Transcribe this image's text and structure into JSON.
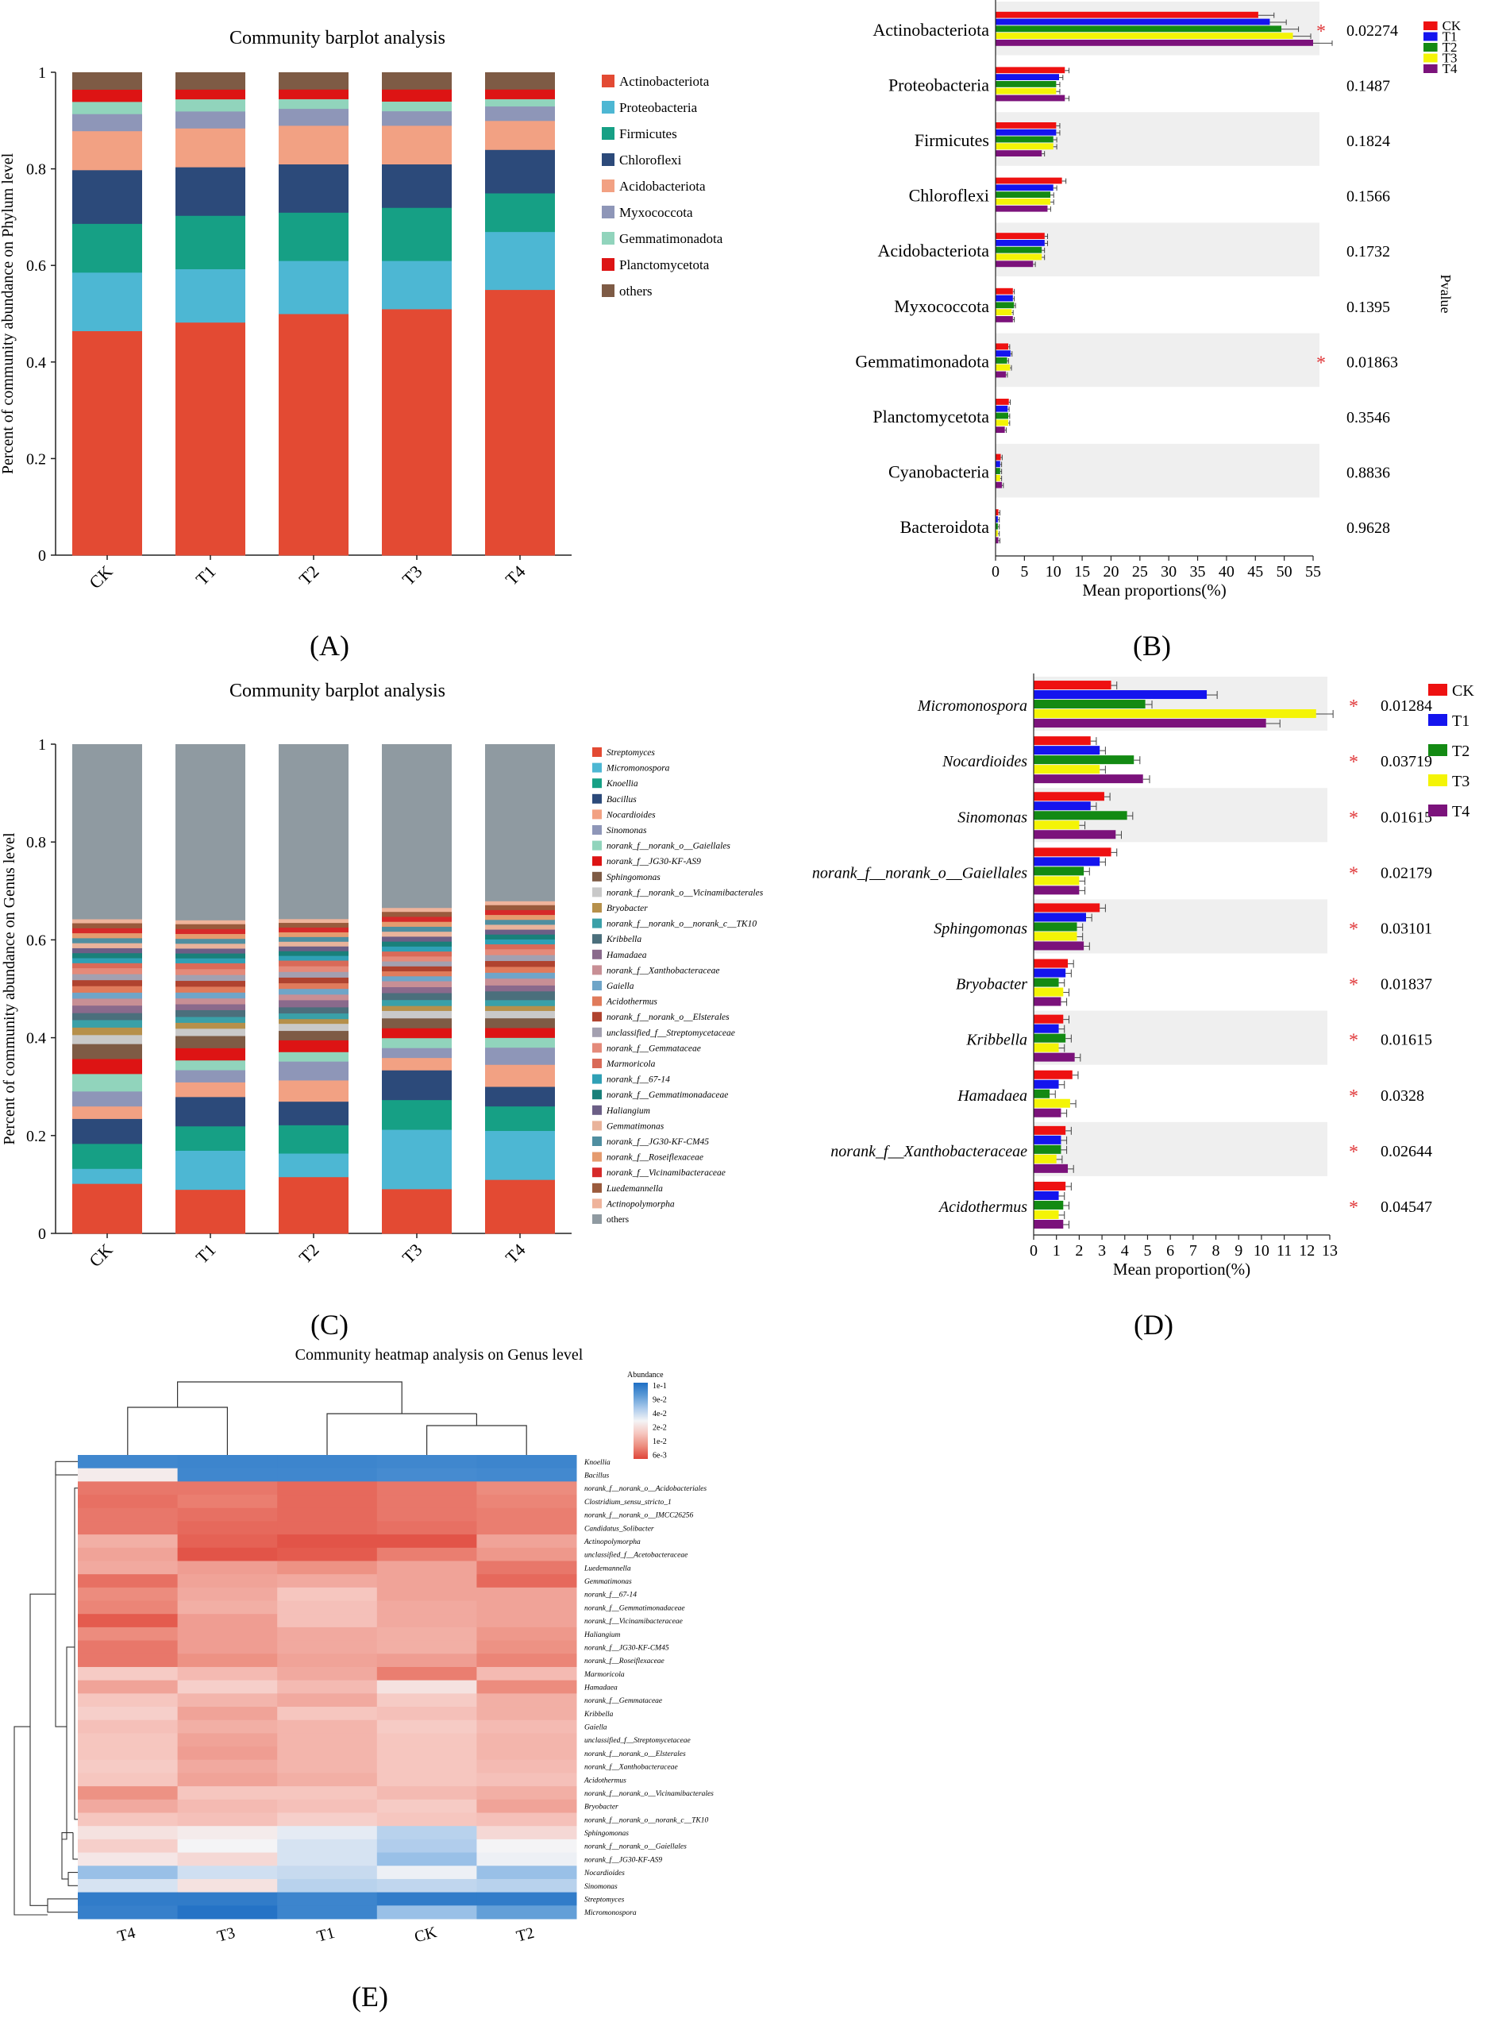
{
  "colors": {
    "phylum": [
      "#e34a33",
      "#4db7d3",
      "#16a085",
      "#2c4a7a",
      "#f2a183",
      "#8e96b8",
      "#91d4bc",
      "#dd1414",
      "#7e5b45"
    ],
    "groups": {
      "CK": "#ee1111",
      "T1": "#1414ee",
      "T2": "#138a13",
      "T3": "#f4f406",
      "T4": "#7b127b"
    },
    "heat_scale": [
      "#1f6fc4",
      "#5b9ad6",
      "#a9c9eb",
      "#f4f4f6",
      "#f6c6bf",
      "#ec8c7e",
      "#e0463a"
    ]
  },
  "chart_data": [
    {
      "id": "A",
      "type": "bar",
      "stacked": true,
      "title": "Community barplot analysis",
      "xlabel": "",
      "ylabel": "Percent of community abundance on Phylum level",
      "ylim": [
        0,
        1
      ],
      "yticks": [
        "0",
        "0.2",
        "0.4",
        "0.6",
        "0.8",
        "1"
      ],
      "categories": [
        "CK",
        "T1",
        "T2",
        "T3",
        "T4"
      ],
      "series": [
        {
          "name": "Actinobacteriota",
          "values": [
            0.46,
            0.48,
            0.5,
            0.51,
            0.55
          ]
        },
        {
          "name": "Proteobacteria",
          "values": [
            0.12,
            0.11,
            0.11,
            0.1,
            0.12
          ]
        },
        {
          "name": "Firmicutes",
          "values": [
            0.1,
            0.11,
            0.1,
            0.11,
            0.08
          ]
        },
        {
          "name": "Chloroflexi",
          "values": [
            0.11,
            0.1,
            0.1,
            0.09,
            0.09
          ]
        },
        {
          "name": "Acidobacteriota",
          "values": [
            0.08,
            0.08,
            0.08,
            0.08,
            0.06
          ]
        },
        {
          "name": "Myxococcota",
          "values": [
            0.035,
            0.035,
            0.035,
            0.03,
            0.03
          ]
        },
        {
          "name": "Gemmatimonadota",
          "values": [
            0.025,
            0.025,
            0.02,
            0.02,
            0.015
          ]
        },
        {
          "name": "Planctomycetota",
          "values": [
            0.025,
            0.02,
            0.02,
            0.025,
            0.02
          ]
        },
        {
          "name": "others",
          "values": [
            0.035,
            0.035,
            0.035,
            0.035,
            0.035
          ]
        }
      ],
      "panel_label": "(A)"
    },
    {
      "id": "B",
      "type": "bar",
      "orientation": "horizontal",
      "xlabel": "Mean proportions(%)",
      "ylabel": "Pvalue",
      "xlim": [
        0,
        55
      ],
      "xticks": [
        "0",
        "5",
        "10",
        "15",
        "20",
        "25",
        "30",
        "35",
        "40",
        "45",
        "50",
        "55"
      ],
      "categories": [
        "Actinobacteriota",
        "Proteobacteria",
        "Firmicutes",
        "Chloroflexi",
        "Acidobacteriota",
        "Myxococcota",
        "Gemmatimonadota",
        "Planctomycetota",
        "Cyanobacteria",
        "Bacteroidota"
      ],
      "groups": [
        "CK",
        "T1",
        "T2",
        "T3",
        "T4"
      ],
      "values": [
        [
          45.5,
          47.5,
          49.5,
          51.5,
          55
        ],
        [
          12,
          11,
          10.5,
          10.5,
          12
        ],
        [
          10.5,
          10.5,
          10,
          10,
          8
        ],
        [
          11.5,
          10,
          9.5,
          9.5,
          9
        ],
        [
          8.5,
          8.5,
          8,
          8,
          6.5
        ],
        [
          3,
          3,
          3.2,
          2.8,
          3
        ],
        [
          2.2,
          2.6,
          2,
          2.5,
          1.8
        ],
        [
          2.3,
          2.1,
          2.2,
          2.2,
          1.6
        ],
        [
          0.9,
          0.8,
          0.8,
          0.8,
          1.1
        ],
        [
          0.5,
          0.4,
          0.4,
          0.4,
          0.5
        ]
      ],
      "pvalues": [
        "0.02274",
        "0.1487",
        "0.1824",
        "0.1566",
        "0.1732",
        "0.1395",
        "0.01863",
        "0.3546",
        "0.8836",
        "0.9628"
      ],
      "significant": [
        true,
        false,
        false,
        false,
        false,
        false,
        true,
        false,
        false,
        false
      ],
      "marker": "*",
      "panel_label": "(B)"
    },
    {
      "id": "C",
      "type": "bar",
      "stacked": true,
      "title": "Community barplot analysis",
      "xlabel": "",
      "ylabel": "Percent of community abundance on Genus level",
      "ylim": [
        0,
        1
      ],
      "yticks": [
        "0",
        "0.2",
        "0.4",
        "0.6",
        "0.8",
        "1"
      ],
      "categories": [
        "CK",
        "T1",
        "T2",
        "T3",
        "T4"
      ],
      "legend": [
        "Streptomyces",
        "Micromonospora",
        "Knoellia",
        "Bacillus",
        "Nocardioides",
        "Sinomonas",
        "norank_f__norank_o__Gaiellales",
        "norank_f__JG30-KF-AS9",
        "Sphingomonas",
        "norank_f__norank_o__Vicinamibacterales",
        "Bryobacter",
        "norank_f__norank_o__norank_c__TK10",
        "Kribbella",
        "Hamadaea",
        "norank_f__Xanthobacteraceae",
        "Gaiella",
        "Acidothermus",
        "norank_f__norank_o__Elsterales",
        "unclassified_f__Streptomycetaceae",
        "norank_f__Gemmataceae",
        "Marmoricola",
        "norank_f__67-14",
        "norank_f__Gemmatimonadaceae",
        "Haliangium",
        "Gemmatimonas",
        "norank_f__JG30-KF-CM45",
        "norank_f__Roseiflexaceae",
        "norank_f__Vicinamibacteraceae",
        "Luedemannella",
        "Actinopolymorpha",
        "others"
      ],
      "series": [
        {
          "name": "Streptomyces",
          "values": [
            0.1,
            0.09,
            0.12,
            0.09,
            0.11
          ]
        },
        {
          "name": "Micromonospora",
          "values": [
            0.03,
            0.08,
            0.05,
            0.12,
            0.1
          ]
        },
        {
          "name": "Knoellia",
          "values": [
            0.05,
            0.05,
            0.06,
            0.06,
            0.05
          ]
        },
        {
          "name": "Bacillus",
          "values": [
            0.05,
            0.06,
            0.05,
            0.06,
            0.04
          ]
        },
        {
          "name": "Nocardioides",
          "values": [
            0.025,
            0.03,
            0.045,
            0.025,
            0.045
          ]
        },
        {
          "name": "Sinomonas",
          "values": [
            0.03,
            0.025,
            0.04,
            0.02,
            0.035
          ]
        },
        {
          "name": "norank_f__norank_o__Gaiellales",
          "values": [
            0.035,
            0.02,
            0.02,
            0.02,
            0.02
          ]
        },
        {
          "name": "norank_f__JG30-KF-AS9",
          "values": [
            0.03,
            0.025,
            0.025,
            0.02,
            0.02
          ]
        },
        {
          "name": "Sphingomonas",
          "values": [
            0.03,
            0.025,
            0.02,
            0.02,
            0.02
          ]
        },
        {
          "name": "norank_f__norank_o__Vicinamibacterales",
          "values": [
            0.018,
            0.015,
            0.015,
            0.015,
            0.015
          ]
        },
        {
          "name": "Bryobacter",
          "values": [
            0.015,
            0.012,
            0.01,
            0.01,
            0.01
          ]
        },
        {
          "name": "norank_f__norank_o__norank_c__TK10",
          "values": [
            0.015,
            0.012,
            0.012,
            0.012,
            0.012
          ]
        },
        {
          "name": "Kribbella",
          "values": [
            0.014,
            0.014,
            0.013,
            0.014,
            0.018
          ]
        },
        {
          "name": "Hamadaea",
          "values": [
            0.015,
            0.012,
            0.015,
            0.012,
            0.012
          ]
        },
        {
          "name": "norank_f__Xanthobacteraceae",
          "values": [
            0.014,
            0.012,
            0.012,
            0.012,
            0.014
          ]
        },
        {
          "name": "Gaiella",
          "values": [
            0.012,
            0.012,
            0.012,
            0.01,
            0.012
          ]
        },
        {
          "name": "Acidothermus",
          "values": [
            0.013,
            0.012,
            0.012,
            0.01,
            0.012
          ]
        },
        {
          "name": "norank_f__norank_o__Elsterales",
          "values": [
            0.012,
            0.012,
            0.012,
            0.01,
            0.012
          ]
        },
        {
          "name": "unclassified_f__Streptomycetaceae",
          "values": [
            0.012,
            0.012,
            0.012,
            0.01,
            0.012
          ]
        },
        {
          "name": "norank_f__Gemmataceae",
          "values": [
            0.012,
            0.012,
            0.012,
            0.01,
            0.012
          ]
        },
        {
          "name": "Marmoricola",
          "values": [
            0.01,
            0.012,
            0.012,
            0.01,
            0.01
          ]
        },
        {
          "name": "norank_f__67-14",
          "values": [
            0.01,
            0.01,
            0.01,
            0.01,
            0.01
          ]
        },
        {
          "name": "norank_f__Gemmatimonadaceae",
          "values": [
            0.01,
            0.01,
            0.01,
            0.01,
            0.01
          ]
        },
        {
          "name": "Haliangium",
          "values": [
            0.01,
            0.01,
            0.01,
            0.01,
            0.01
          ]
        },
        {
          "name": "Gemmatimonas",
          "values": [
            0.01,
            0.01,
            0.01,
            0.01,
            0.01
          ]
        },
        {
          "name": "norank_f__JG30-KF-CM45",
          "values": [
            0.01,
            0.01,
            0.01,
            0.01,
            0.01
          ]
        },
        {
          "name": "norank_f__Roseiflexaceae",
          "values": [
            0.01,
            0.01,
            0.01,
            0.01,
            0.01
          ]
        },
        {
          "name": "norank_f__Vicinamibacteraceae",
          "values": [
            0.01,
            0.01,
            0.01,
            0.01,
            0.01
          ]
        },
        {
          "name": "Luedemannella",
          "values": [
            0.01,
            0.01,
            0.01,
            0.01,
            0.01
          ]
        },
        {
          "name": "Actinopolymorpha",
          "values": [
            0.008,
            0.008,
            0.008,
            0.008,
            0.008
          ]
        },
        {
          "name": "others",
          "values": [
            0.35,
            0.36,
            0.37,
            0.33,
            0.32
          ]
        }
      ],
      "panel_label": "(C)"
    },
    {
      "id": "D",
      "type": "bar",
      "orientation": "horizontal",
      "xlabel": "Mean proportion(%)",
      "xlim": [
        0,
        13
      ],
      "xticks": [
        "0",
        "1",
        "2",
        "3",
        "4",
        "5",
        "6",
        "7",
        "8",
        "9",
        "10",
        "11",
        "12",
        "13"
      ],
      "categories": [
        "Micromonospora",
        "Nocardioides",
        "Sinomonas",
        "norank_f__norank_o__Gaiellales",
        "Sphingomonas",
        "Bryobacter",
        "Kribbella",
        "Hamadaea",
        "norank_f__Xanthobacteraceae",
        "Acidothermus"
      ],
      "groups": [
        "CK",
        "T1",
        "T2",
        "T3",
        "T4"
      ],
      "values": [
        [
          3.4,
          7.6,
          4.9,
          12.4,
          10.2
        ],
        [
          2.5,
          2.9,
          4.4,
          2.9,
          4.8
        ],
        [
          3.1,
          2.5,
          4.1,
          2.0,
          3.6
        ],
        [
          3.4,
          2.9,
          2.2,
          2.0,
          2.0
        ],
        [
          2.9,
          2.3,
          1.9,
          1.9,
          2.2
        ],
        [
          1.5,
          1.4,
          1.1,
          1.3,
          1.2
        ],
        [
          1.3,
          1.1,
          1.4,
          1.1,
          1.8
        ],
        [
          1.7,
          1.1,
          0.7,
          1.6,
          1.2
        ],
        [
          1.4,
          1.2,
          1.2,
          1.0,
          1.5
        ],
        [
          1.4,
          1.1,
          1.3,
          1.1,
          1.3
        ]
      ],
      "pvalues": [
        "0.01284",
        "0.03719",
        "0.01615",
        "0.02179",
        "0.03101",
        "0.01837",
        "0.01615",
        "0.0328",
        "0.02644",
        "0.04547"
      ],
      "significant": [
        true,
        true,
        true,
        true,
        true,
        true,
        true,
        true,
        true,
        true
      ],
      "marker": "*",
      "panel_label": "(D)"
    },
    {
      "id": "E",
      "type": "heatmap",
      "title": "Community heatmap analysis on Genus level",
      "legend_title": "Abundance",
      "legend_ticks": [
        "1e-1",
        "9e-2",
        "4e-2",
        "2e-2",
        "1e-2",
        "6e-3"
      ],
      "columns": [
        "T4",
        "T3",
        "T1",
        "CK",
        "T2"
      ],
      "rows": [
        "Knoellia",
        "Bacillus",
        "norank_f__norank_o__Acidobacteriales",
        "Clostridium_sensu_stricto_1",
        "norank_f__norank_o__IMCC26256",
        "Candidatus_Solibacter",
        "Actinopolymorpha",
        "unclassified_f__Acetobacteraceae",
        "Luedemannella",
        "Gemmatimonas",
        "norank_f__67-14",
        "norank_f__Gemmatimonadaceae",
        "norank_f__Vicinamibacteraceae",
        "Haliangium",
        "norank_f__JG30-KF-CM45",
        "norank_f__Roseiflexaceae",
        "Marmoricola",
        "Hamadaea",
        "norank_f__Gemmataceae",
        "Kribbella",
        "Gaiella",
        "unclassified_f__Streptomycetaceae",
        "norank_f__norank_o__Elsterales",
        "norank_f__Xanthobacteraceae",
        "Acidothermus",
        "norank_f__norank_o__Vicinamibacterales",
        "Bryobacter",
        "norank_f__norank_o__norank_c__TK10",
        "Sphingomonas",
        "norank_f__norank_o__Gaiellales",
        "norank_f__JG30-KF-AS9",
        "Nocardioides",
        "Sinomonas",
        "Streptomyces",
        "Micromonospora"
      ],
      "values": [
        [
          0.55,
          0.5,
          0.5,
          0.55,
          0.5
        ],
        [
          3.2,
          0.55,
          0.55,
          0.65,
          0.6
        ],
        [
          5.3,
          5.3,
          5.5,
          5.3,
          5.0
        ],
        [
          5.4,
          5.2,
          5.5,
          5.3,
          5.1
        ],
        [
          5.3,
          5.4,
          5.5,
          5.3,
          5.2
        ],
        [
          5.3,
          5.5,
          5.5,
          5.4,
          5.2
        ],
        [
          4.4,
          5.6,
          5.8,
          5.8,
          4.6
        ],
        [
          4.6,
          5.8,
          5.7,
          5.2,
          4.8
        ],
        [
          4.5,
          4.7,
          4.9,
          4.6,
          5.3
        ],
        [
          5.4,
          4.6,
          4.5,
          4.6,
          5.5
        ],
        [
          5.0,
          4.5,
          4.0,
          4.6,
          4.6
        ],
        [
          5.1,
          4.4,
          4.1,
          4.5,
          4.6
        ],
        [
          5.7,
          4.7,
          4.1,
          4.5,
          4.6
        ],
        [
          5.0,
          4.7,
          4.5,
          4.4,
          4.8
        ],
        [
          5.3,
          4.7,
          4.5,
          4.4,
          4.9
        ],
        [
          5.3,
          4.9,
          4.6,
          4.7,
          5.1
        ],
        [
          3.9,
          4.2,
          4.5,
          5.2,
          4.2
        ],
        [
          4.6,
          3.8,
          4.2,
          3.4,
          5.0
        ],
        [
          4.0,
          4.3,
          4.5,
          3.9,
          4.4
        ],
        [
          3.8,
          4.6,
          4.0,
          4.1,
          4.4
        ],
        [
          4.1,
          4.4,
          4.3,
          3.9,
          4.2
        ],
        [
          4.0,
          4.6,
          4.3,
          4.0,
          4.3
        ],
        [
          4.0,
          4.7,
          4.3,
          4.0,
          4.3
        ],
        [
          3.9,
          4.5,
          4.3,
          4.0,
          4.2
        ],
        [
          4.0,
          4.6,
          4.4,
          4.0,
          4.1
        ],
        [
          4.9,
          4.0,
          4.0,
          4.2,
          4.4
        ],
        [
          4.5,
          4.2,
          4.1,
          3.9,
          4.6
        ],
        [
          4.0,
          4.1,
          3.8,
          4.0,
          4.1
        ],
        [
          3.4,
          3.2,
          2.8,
          2.2,
          3.6
        ],
        [
          3.8,
          3.0,
          2.6,
          2.1,
          3.0
        ],
        [
          3.3,
          3.6,
          2.6,
          1.8,
          2.9
        ],
        [
          1.8,
          2.5,
          2.4,
          2.9,
          1.8
        ],
        [
          2.6,
          3.4,
          2.2,
          2.3,
          2.2
        ],
        [
          0.3,
          0.3,
          0.5,
          0.3,
          0.3
        ],
        [
          0.4,
          0.1,
          0.5,
          1.8,
          1.1
        ]
      ],
      "panel_label": "(E)"
    }
  ]
}
